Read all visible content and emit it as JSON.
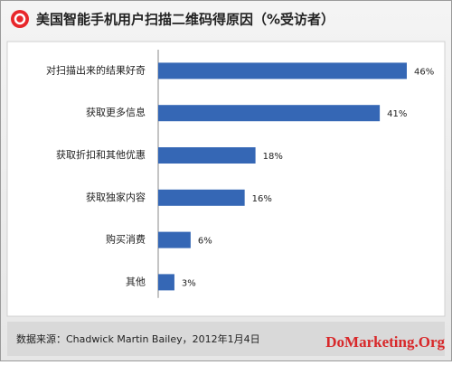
{
  "chart_data": {
    "type": "bar",
    "orientation": "horizontal",
    "title": "美国智能手机用户扫描二维码得原因（%受访者）",
    "categories": [
      "对扫描出来的结果好奇",
      "获取更多信息",
      "获取折扣和其他优惠",
      "获取独家内容",
      "购买消费",
      "其他"
    ],
    "values": [
      46,
      41,
      18,
      16,
      6,
      3
    ],
    "value_labels": [
      "46%",
      "41%",
      "18%",
      "16%",
      "6%",
      "3%"
    ],
    "color": "#3567b5",
    "source": "数据来源：Chadwick Martin Bailey，2012年1月4日",
    "watermark": "DoMarketing.Org"
  }
}
